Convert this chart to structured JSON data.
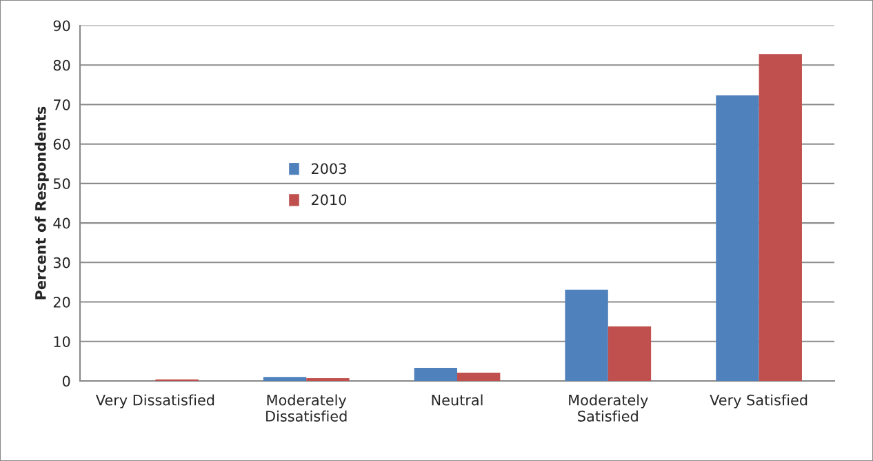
{
  "chart_data": {
    "type": "bar",
    "ylabel": "Percent of Respondents",
    "categories": [
      "Very Dissatisfied",
      "Moderately\nDissatisfied",
      "Neutral",
      "Moderately\nSatisfied",
      "Very Satisfied"
    ],
    "series": [
      {
        "name": "2003",
        "color": "#4f81bd",
        "values": [
          0,
          1.0,
          3.3,
          23.1,
          72.3
        ]
      },
      {
        "name": "2010",
        "color": "#c0504d",
        "values": [
          0.4,
          0.7,
          2.1,
          13.8,
          82.8
        ]
      }
    ],
    "ylim": [
      0,
      90
    ],
    "yticks": [
      0,
      10,
      20,
      30,
      40,
      50,
      60,
      70,
      80,
      90
    ],
    "grid": "y",
    "legend": "center left"
  }
}
